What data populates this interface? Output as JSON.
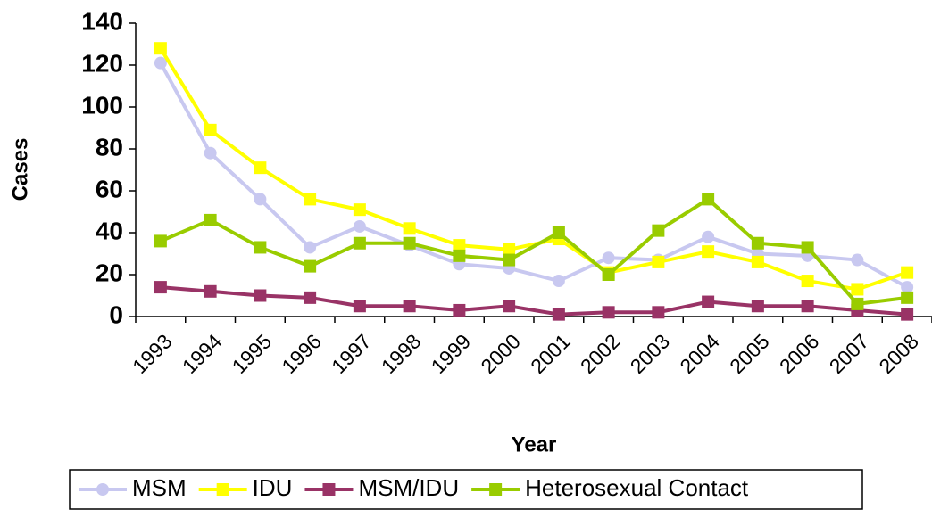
{
  "chart_data": {
    "type": "line",
    "x_label": "Year",
    "y_label": "Cases",
    "categories": [
      "1993",
      "1994",
      "1995",
      "1996",
      "1997",
      "1998",
      "1999",
      "2000",
      "2001",
      "2002",
      "2003",
      "2004",
      "2005",
      "2006",
      "2007",
      "2008"
    ],
    "series": [
      {
        "name": "MSM",
        "color": "#c8c8f0",
        "marker": "circle",
        "values": [
          121,
          78,
          56,
          33,
          43,
          34,
          25,
          23,
          17,
          28,
          27,
          38,
          30,
          29,
          27,
          14
        ]
      },
      {
        "name": "IDU",
        "color": "#ffff00",
        "marker": "square",
        "values": [
          128,
          89,
          71,
          56,
          51,
          42,
          34,
          32,
          37,
          21,
          26,
          31,
          26,
          17,
          13,
          21
        ]
      },
      {
        "name": "MSM/IDU",
        "color": "#993366",
        "marker": "square",
        "values": [
          14,
          12,
          10,
          9,
          5,
          5,
          3,
          5,
          1,
          2,
          2,
          7,
          5,
          5,
          3,
          1
        ]
      },
      {
        "name": "Heterosexual Contact",
        "color": "#99cc00",
        "marker": "square",
        "values": [
          36,
          46,
          33,
          24,
          35,
          35,
          29,
          27,
          40,
          20,
          41,
          56,
          35,
          33,
          6,
          9
        ]
      }
    ],
    "ylim": [
      0,
      140
    ],
    "yticks": [
      0,
      20,
      40,
      60,
      80,
      100,
      120,
      140
    ],
    "grid": false,
    "legend": "bottom"
  }
}
